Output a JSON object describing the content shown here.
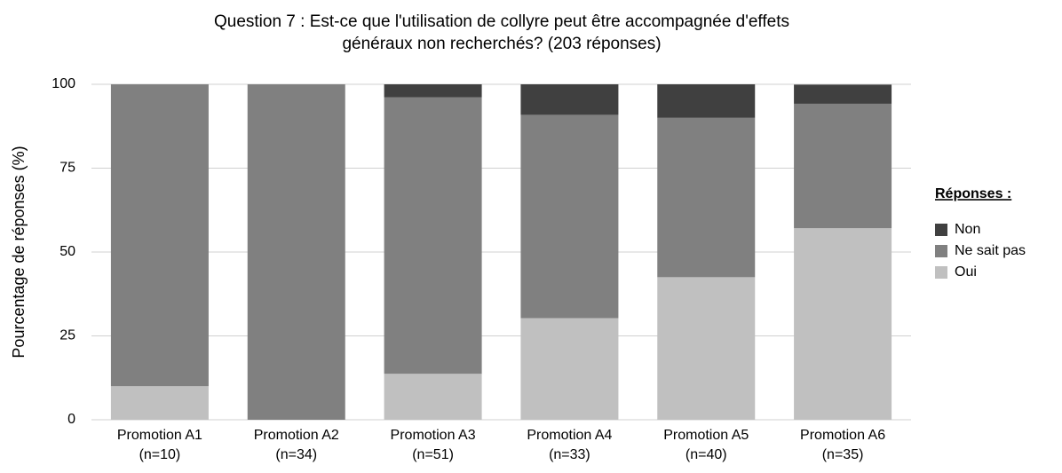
{
  "chart_data": {
    "type": "stacked_bar",
    "title": [
      "Question 7 : Est-ce que l'utilisation de collyre peut être accompagnée d'effets",
      "généraux non recherchés? (203 réponses)"
    ],
    "y_label": "Pourcentage de réponses (%)",
    "categories": [
      [
        "Promotion A1",
        "(n=10)"
      ],
      [
        "Promotion A2",
        "(n=34)"
      ],
      [
        "Promotion A3",
        "(n=51)"
      ],
      [
        "Promotion A4",
        "(n=33)"
      ],
      [
        "Promotion A5",
        "(n=40)"
      ],
      [
        "Promotion A6",
        "(n=35)"
      ]
    ],
    "series": [
      {
        "name": "Oui",
        "color": "#c0c0c0",
        "values": [
          10,
          0,
          13.7,
          30.3,
          42.5,
          57.1
        ]
      },
      {
        "name": "Ne sait pas",
        "color": "#808080",
        "values": [
          90,
          100,
          82.4,
          60.6,
          47.5,
          37.1
        ]
      },
      {
        "name": "Non",
        "color": "#404040",
        "values": [
          0,
          0,
          3.9,
          9.1,
          10,
          5.7
        ]
      }
    ],
    "ylim": [
      0,
      100
    ],
    "yticks": [
      0,
      25,
      50,
      75,
      100
    ],
    "grid": true,
    "legend_title": "Réponses :",
    "legend_position": "right"
  }
}
